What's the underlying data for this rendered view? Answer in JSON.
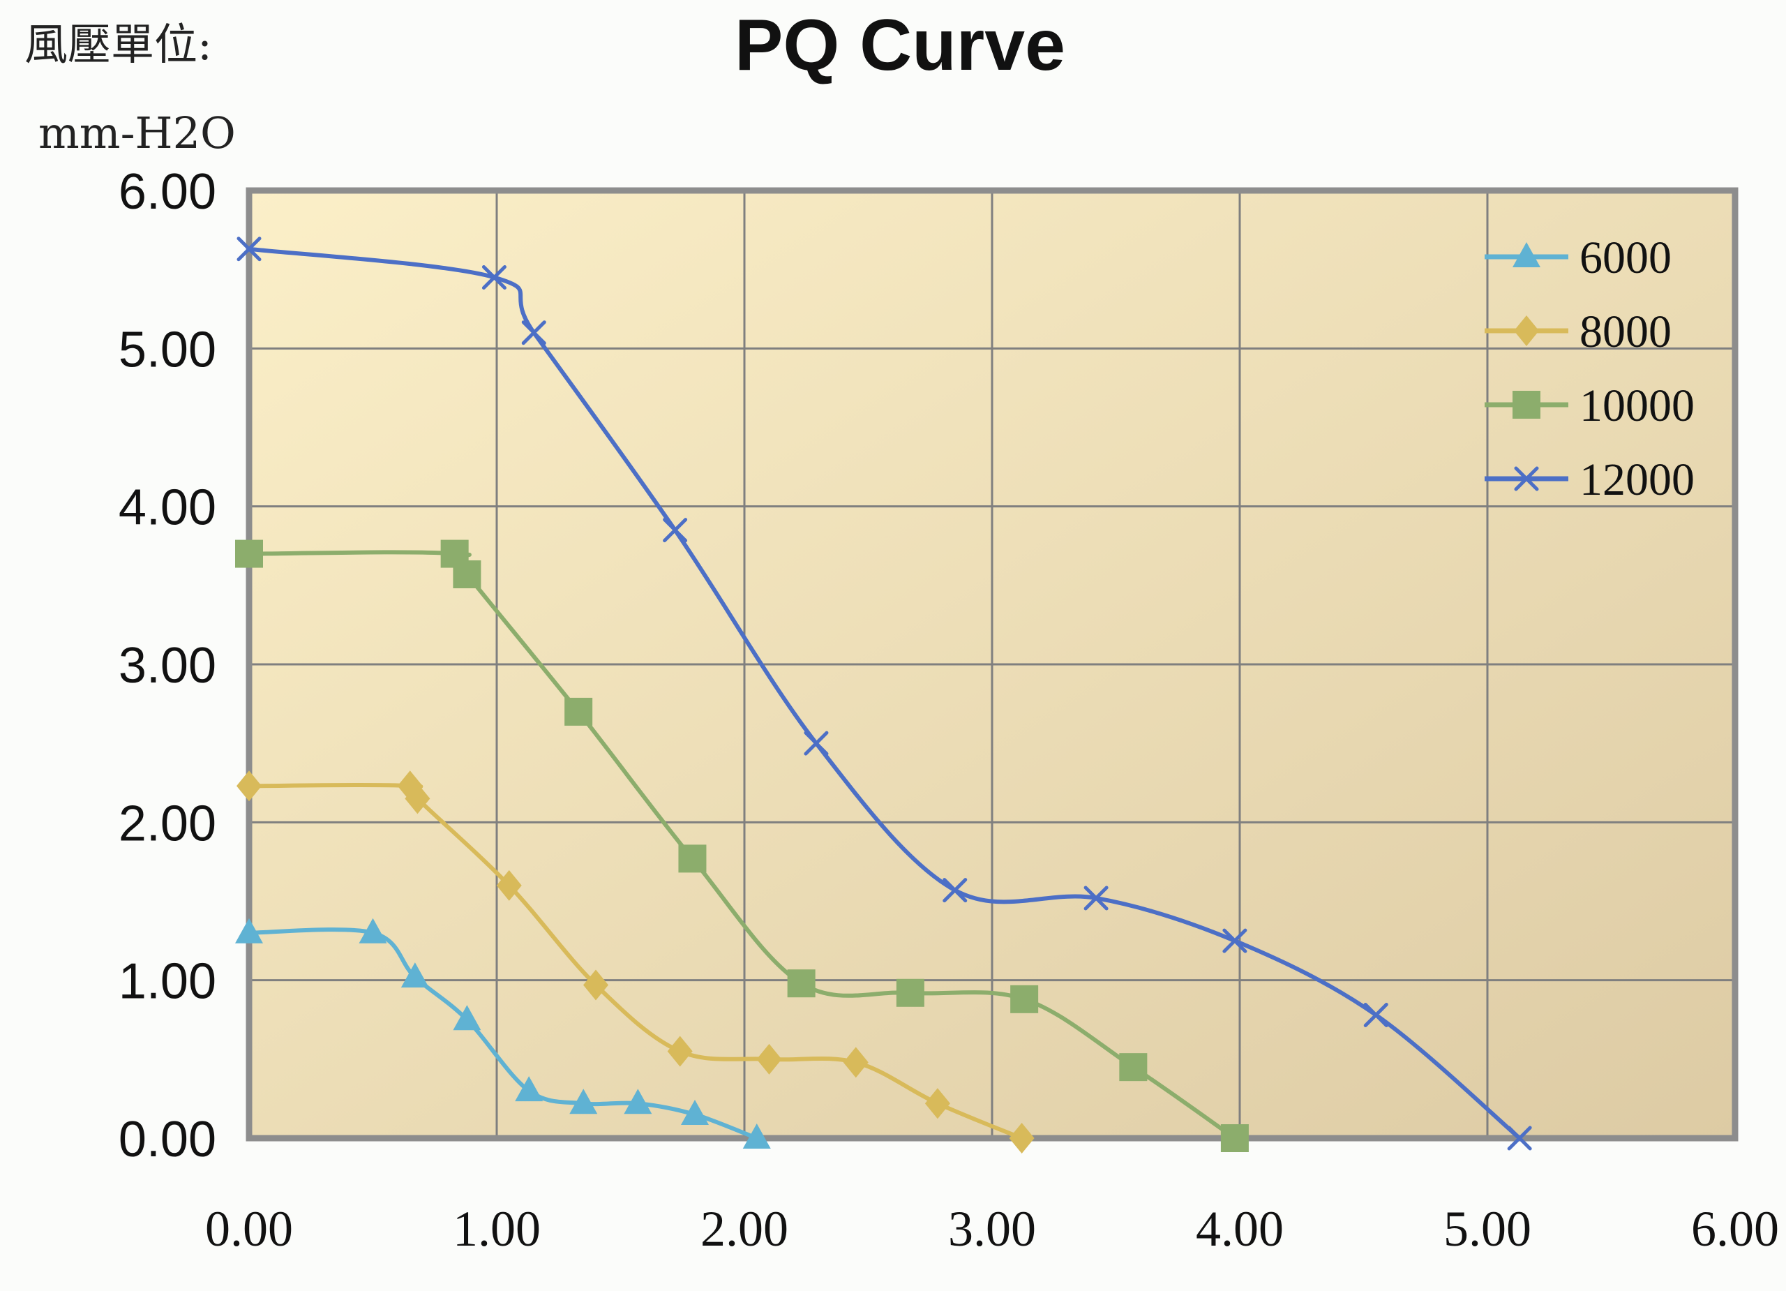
{
  "chart_data": {
    "type": "line",
    "title": "PQ Curve",
    "ylabel": [
      "風壓單位:",
      "mm-H2O"
    ],
    "xlabel": "",
    "xlim": [
      0,
      6
    ],
    "ylim": [
      0,
      6
    ],
    "xticks": [
      "0.00",
      "1.00",
      "2.00",
      "3.00",
      "4.00",
      "5.00",
      "6.00"
    ],
    "yticks": [
      "0.00",
      "1.00",
      "2.00",
      "3.00",
      "4.00",
      "5.00",
      "6.00"
    ],
    "grid": true,
    "legend_position": "top-right",
    "plot_background": [
      "#fbefc8",
      "#ddcba4"
    ],
    "series": [
      {
        "name": "6000",
        "color": "#5fb2d3",
        "marker": "triangle",
        "points": [
          [
            0.0,
            1.3
          ],
          [
            0.5,
            1.3
          ],
          [
            0.67,
            1.02
          ],
          [
            0.88,
            0.75
          ],
          [
            1.13,
            0.3
          ],
          [
            1.35,
            0.22
          ],
          [
            1.57,
            0.22
          ],
          [
            1.8,
            0.15
          ],
          [
            2.05,
            0.0
          ]
        ]
      },
      {
        "name": "8000",
        "color": "#d8ba5a",
        "marker": "diamond",
        "points": [
          [
            0.0,
            2.23
          ],
          [
            0.65,
            2.23
          ],
          [
            0.68,
            2.15
          ],
          [
            1.05,
            1.6
          ],
          [
            1.4,
            0.97
          ],
          [
            1.74,
            0.55
          ],
          [
            2.1,
            0.5
          ],
          [
            2.45,
            0.48
          ],
          [
            2.78,
            0.22
          ],
          [
            3.12,
            0.0
          ]
        ]
      },
      {
        "name": "10000",
        "color": "#8cad6c",
        "marker": "square",
        "points": [
          [
            0.0,
            3.7
          ],
          [
            0.83,
            3.7
          ],
          [
            0.88,
            3.57
          ],
          [
            1.33,
            2.7
          ],
          [
            1.79,
            1.77
          ],
          [
            2.23,
            0.98
          ],
          [
            2.67,
            0.92
          ],
          [
            3.13,
            0.88
          ],
          [
            3.57,
            0.45
          ],
          [
            3.98,
            0.0
          ]
        ]
      },
      {
        "name": "12000",
        "color": "#4c6fc6",
        "marker": "x",
        "points": [
          [
            0.0,
            5.63
          ],
          [
            0.99,
            5.45
          ],
          [
            1.15,
            5.1
          ],
          [
            1.72,
            3.85
          ],
          [
            2.29,
            2.5
          ],
          [
            2.85,
            1.57
          ],
          [
            3.42,
            1.52
          ],
          [
            3.98,
            1.25
          ],
          [
            4.55,
            0.78
          ],
          [
            5.13,
            0.0
          ]
        ]
      }
    ]
  }
}
